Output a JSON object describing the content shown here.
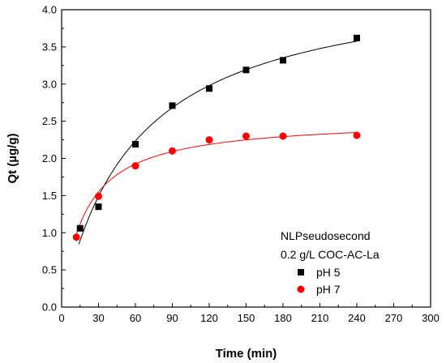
{
  "chart_data": {
    "type": "scatter",
    "title": "",
    "xlabel": "Time (min)",
    "ylabel": "Qt (µg/g)",
    "xlim": [
      0,
      300
    ],
    "ylim": [
      0,
      4.0
    ],
    "xticks": [
      "0",
      "30",
      "60",
      "90",
      "120",
      "150",
      "180",
      "210",
      "240",
      "270",
      "300"
    ],
    "yticks": [
      "0.0",
      "0.5",
      "1.0",
      "1.5",
      "2.0",
      "2.5",
      "3.0",
      "3.5",
      "4.0"
    ],
    "grid": false,
    "legend": {
      "placement": "bottom-right",
      "title_lines": [
        "NLPseudosecond",
        "0.2 g/L COC-AC-La"
      ]
    },
    "series": [
      {
        "name": "pH 5",
        "marker": "square",
        "color": "#000000",
        "fit_color": "#000000",
        "x": [
          15,
          30,
          60,
          90,
          120,
          150,
          180,
          240
        ],
        "y": [
          1.06,
          1.35,
          2.19,
          2.71,
          2.94,
          3.19,
          3.32,
          3.62
        ],
        "fit_range": [
          14,
          240
        ]
      },
      {
        "name": "pH 7",
        "marker": "circle",
        "color": "#ff0000",
        "fit_color": "#ff0000",
        "x": [
          12,
          30,
          60,
          90,
          120,
          150,
          180,
          240
        ],
        "y": [
          0.94,
          1.49,
          1.9,
          2.1,
          2.25,
          2.3,
          2.3,
          2.31
        ],
        "fit_range": [
          12,
          240
        ]
      }
    ]
  }
}
